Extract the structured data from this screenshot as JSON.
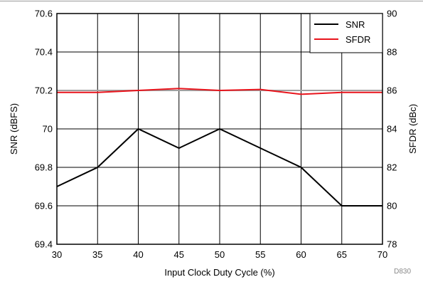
{
  "chart_data": {
    "type": "line",
    "xlabel": "Input Clock Duty Cycle (%)",
    "ylabel": "SNR (dBFS)",
    "y2label": "SFDR (dBc)",
    "x": [
      30,
      35,
      40,
      45,
      50,
      55,
      60,
      65,
      70
    ],
    "xlim": [
      30,
      70
    ],
    "ylim": [
      69.4,
      70.6
    ],
    "y2lim": [
      78,
      90
    ],
    "xticks": [
      "30",
      "35",
      "40",
      "45",
      "50",
      "55",
      "60",
      "65",
      "70"
    ],
    "yticks": [
      "69.4",
      "69.6",
      "69.8",
      "70",
      "70.2",
      "70.4",
      "70.6"
    ],
    "y2ticks": [
      "78",
      "80",
      "82",
      "84",
      "86",
      "88",
      "90"
    ],
    "grid": true,
    "legend_position": "top-right",
    "series": [
      {
        "name": "SNR",
        "axis": "left",
        "color": "#000000",
        "values": [
          69.7,
          69.8,
          70.0,
          69.9,
          70.0,
          69.9,
          69.8,
          69.6,
          69.6
        ]
      },
      {
        "name": "SFDR",
        "axis": "right",
        "color": "#e8141c",
        "values": [
          85.9,
          85.9,
          86.0,
          86.1,
          86.0,
          86.05,
          85.8,
          85.9,
          85.9
        ]
      }
    ],
    "reference_line": {
      "axis": "right",
      "value": 86,
      "color": "#a0a0a0"
    },
    "figure_code": "D830"
  }
}
